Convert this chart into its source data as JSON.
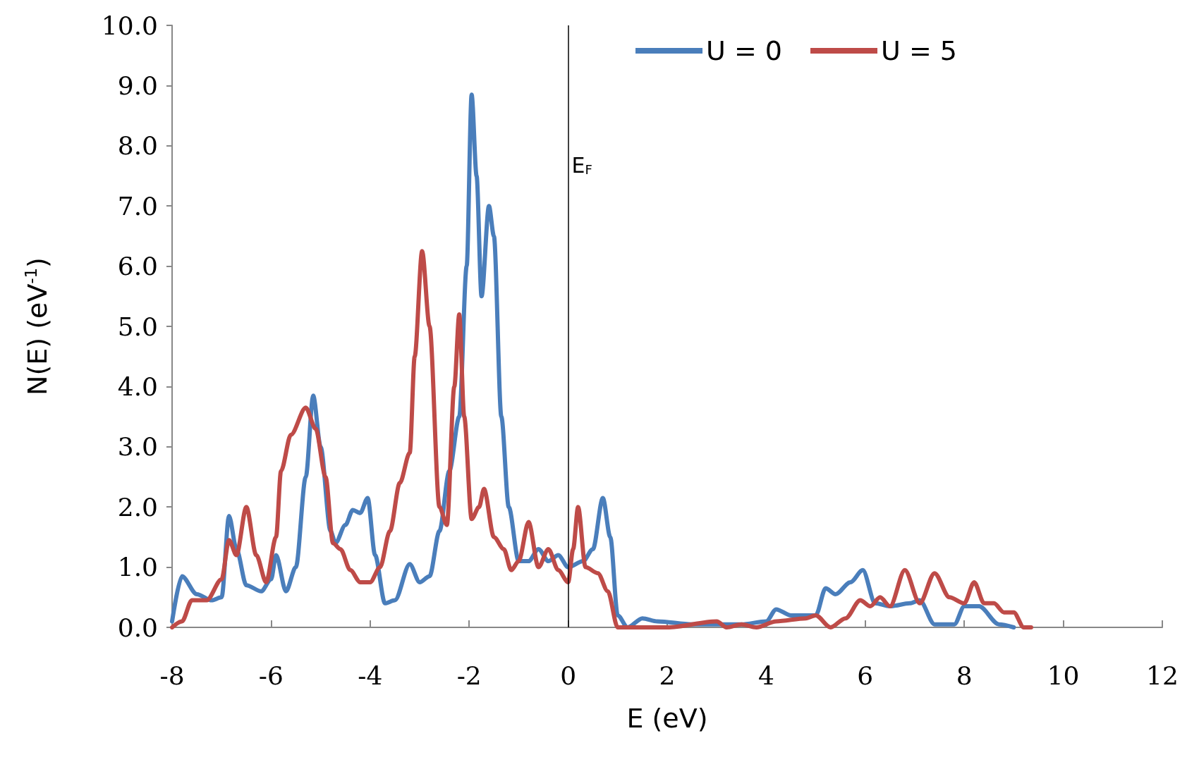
{
  "chart_data": {
    "type": "line",
    "xlabel": "E (eV)",
    "ylabel": "N(E) (eV$^{-1}$)",
    "xlim": [
      -8,
      12
    ],
    "xticks": [
      -8,
      -6,
      -4,
      -2,
      0,
      2,
      4,
      6,
      8,
      10,
      12
    ],
    "ylim": [
      0,
      10
    ],
    "yticks": [
      {
        "value": 0,
        "label": "0.0"
      },
      {
        "value": 1,
        "label": "1.0"
      },
      {
        "value": 2,
        "label": "2.0"
      },
      {
        "value": 3,
        "label": "3.0"
      },
      {
        "value": 4,
        "label": "4.0"
      },
      {
        "value": 5,
        "label": "5.0"
      },
      {
        "value": 6,
        "label": "6.0"
      },
      {
        "value": 7,
        "label": "7.0"
      },
      {
        "value": 8,
        "label": "8.0"
      },
      {
        "value": 9,
        "label": "9.0"
      },
      {
        "value": 10,
        "label": "10.0"
      }
    ],
    "grid": false,
    "legend": "top right",
    "marker": "none",
    "line_style": "solid",
    "ref_lines": [
      {
        "axis": "x",
        "value": 0,
        "label": "E$_{F}$",
        "color": "#000000"
      }
    ],
    "series": [
      {
        "name": "U = 0",
        "color": "#4a7ebb",
        "x": [
          -8,
          -7.8,
          -7.5,
          -7.2,
          -7.0,
          -6.85,
          -6.7,
          -6.5,
          -6.2,
          -6.0,
          -5.9,
          -5.7,
          -5.5,
          -5.3,
          -5.15,
          -5.0,
          -4.8,
          -4.7,
          -4.5,
          -4.35,
          -4.2,
          -4.05,
          -3.9,
          -3.7,
          -3.5,
          -3.2,
          -3.0,
          -2.8,
          -2.6,
          -2.4,
          -2.2,
          -2.05,
          -1.95,
          -1.85,
          -1.75,
          -1.6,
          -1.5,
          -1.35,
          -1.2,
          -1.0,
          -0.8,
          -0.6,
          -0.4,
          -0.2,
          0,
          0.3,
          0.5,
          0.7,
          0.85,
          1.0,
          1.2,
          1.5,
          1.8,
          2.5,
          3.5,
          4.0,
          4.2,
          4.5,
          5.0,
          5.2,
          5.4,
          5.7,
          5.95,
          6.2,
          6.5,
          6.9,
          7.1,
          7.4,
          7.8,
          8.0,
          8.3,
          8.7,
          9.0
        ],
        "values": [
          0.1,
          0.85,
          0.55,
          0.45,
          0.5,
          1.85,
          1.3,
          0.7,
          0.6,
          0.8,
          1.2,
          0.6,
          1.0,
          2.5,
          3.85,
          3.0,
          1.6,
          1.4,
          1.7,
          1.95,
          1.9,
          2.15,
          1.2,
          0.4,
          0.45,
          1.05,
          0.75,
          0.85,
          1.6,
          2.6,
          3.5,
          6.0,
          8.85,
          7.5,
          5.5,
          7.0,
          6.5,
          3.5,
          2.0,
          1.1,
          1.1,
          1.3,
          1.1,
          1.2,
          1.0,
          1.1,
          1.3,
          2.15,
          1.5,
          0.2,
          0.0,
          0.15,
          0.1,
          0.05,
          0.05,
          0.1,
          0.3,
          0.2,
          0.2,
          0.65,
          0.55,
          0.75,
          0.95,
          0.4,
          0.35,
          0.4,
          0.45,
          0.05,
          0.05,
          0.35,
          0.35,
          0.05,
          0.0
        ]
      },
      {
        "name": "U = 5",
        "color": "#be4b48",
        "x": [
          -8,
          -7.8,
          -7.6,
          -7.3,
          -7.0,
          -6.85,
          -6.7,
          -6.5,
          -6.3,
          -6.1,
          -5.9,
          -5.8,
          -5.6,
          -5.3,
          -5.1,
          -4.9,
          -4.75,
          -4.6,
          -4.4,
          -4.2,
          -4.0,
          -3.8,
          -3.6,
          -3.4,
          -3.2,
          -3.1,
          -2.95,
          -2.8,
          -2.6,
          -2.45,
          -2.3,
          -2.2,
          -2.1,
          -1.95,
          -1.8,
          -1.7,
          -1.5,
          -1.3,
          -1.15,
          -1.0,
          -0.8,
          -0.6,
          -0.4,
          -0.2,
          0,
          0.1,
          0.2,
          0.35,
          0.6,
          0.8,
          1.0,
          2.0,
          3.0,
          3.2,
          3.5,
          3.8,
          4.2,
          4.8,
          5.0,
          5.3,
          5.6,
          5.9,
          6.1,
          6.3,
          6.5,
          6.8,
          7.1,
          7.4,
          7.7,
          8.0,
          8.2,
          8.4,
          8.6,
          8.8,
          9.0,
          9.2,
          9.35
        ],
        "values": [
          0.0,
          0.1,
          0.45,
          0.45,
          0.8,
          1.45,
          1.2,
          2.0,
          1.2,
          0.75,
          1.5,
          2.6,
          3.2,
          3.65,
          3.3,
          2.5,
          1.4,
          1.3,
          0.95,
          0.75,
          0.75,
          1.0,
          1.6,
          2.4,
          2.9,
          4.5,
          6.25,
          5.0,
          2.0,
          1.7,
          4.0,
          5.2,
          3.5,
          1.8,
          2.0,
          2.3,
          1.5,
          1.3,
          0.95,
          1.1,
          1.75,
          1.0,
          1.3,
          0.95,
          0.75,
          1.3,
          2.0,
          1.0,
          0.9,
          0.6,
          0.0,
          0.0,
          0.1,
          0.0,
          0.05,
          0.0,
          0.1,
          0.15,
          0.2,
          0.0,
          0.15,
          0.45,
          0.35,
          0.5,
          0.35,
          0.95,
          0.4,
          0.9,
          0.5,
          0.4,
          0.75,
          0.4,
          0.4,
          0.25,
          0.25,
          0.0,
          0.0
        ]
      }
    ]
  }
}
